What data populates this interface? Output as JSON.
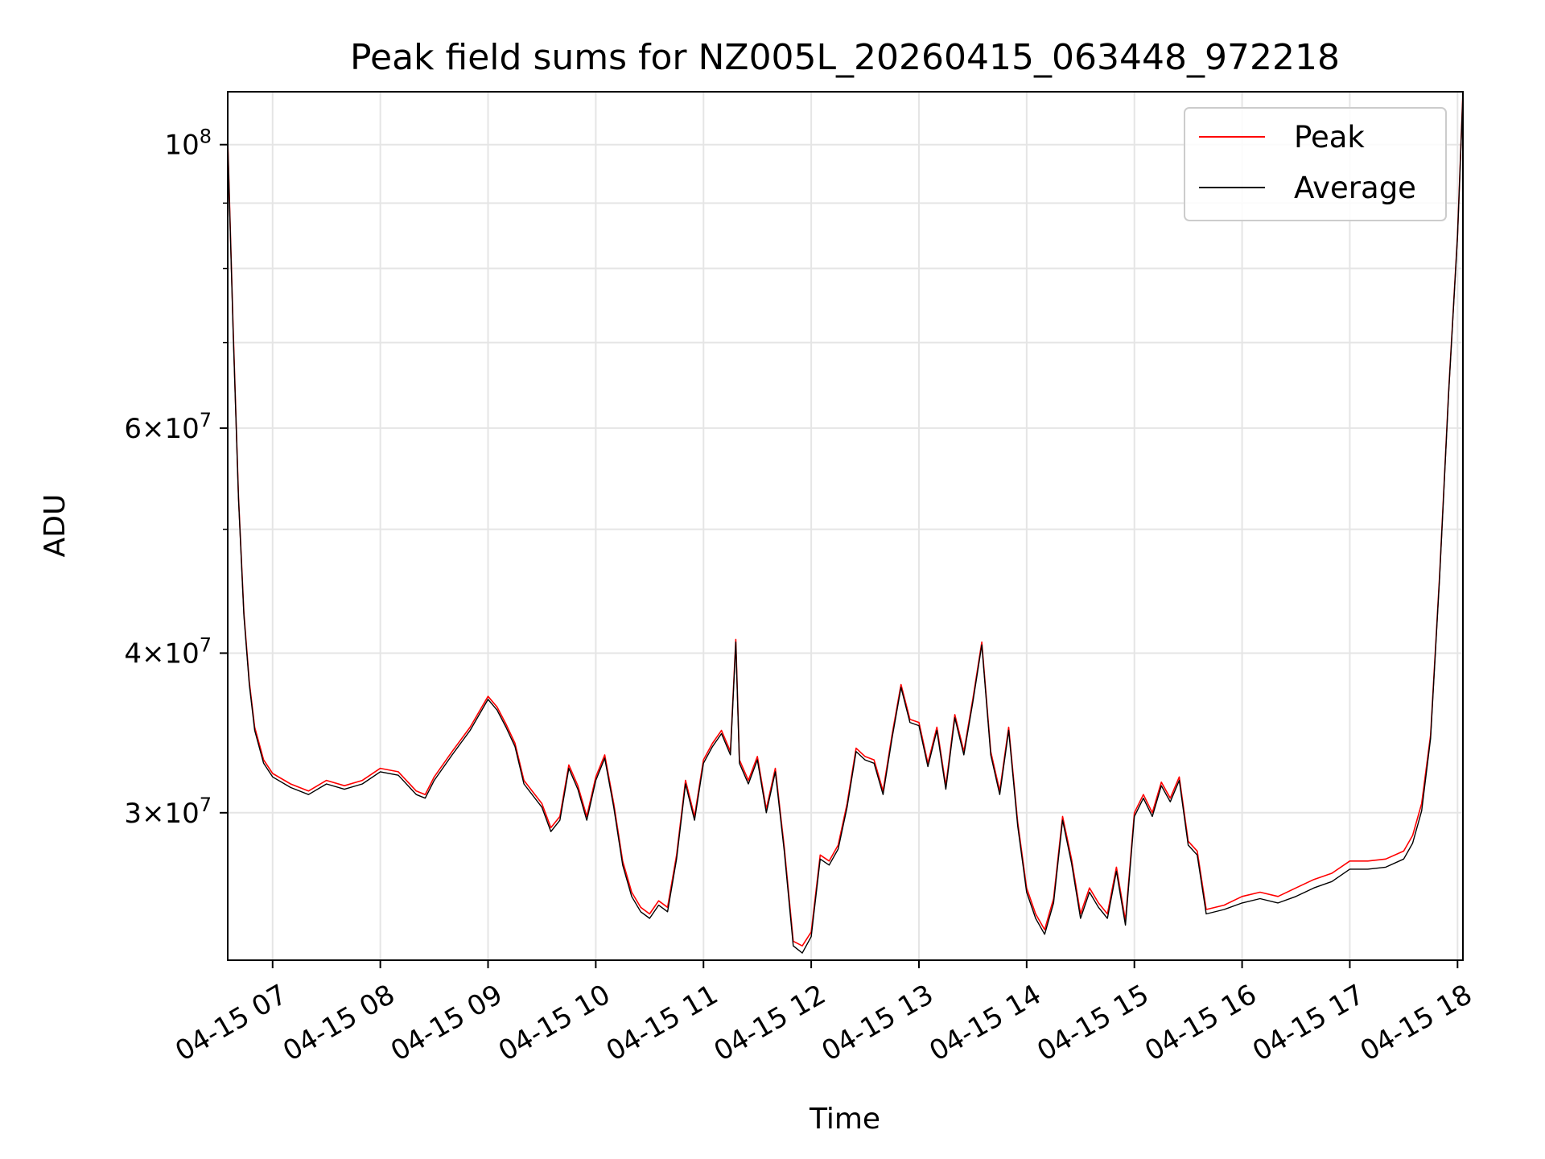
{
  "chart_data": {
    "type": "line",
    "title": "Peak field sums for NZ005L_20260415_063448_972218",
    "xlabel": "Time",
    "ylabel": "ADU",
    "y_scale": "log",
    "ylim": [
      23000000,
      110000000
    ],
    "xlim": [
      "2026-04-15 06:35",
      "2026-04-15 18:03"
    ],
    "grid": true,
    "legend_position": "top-right",
    "x_tick_labels": [
      {
        "t": "2026-04-15 07:00",
        "label": "04-15 07"
      },
      {
        "t": "2026-04-15 08:00",
        "label": "04-15 08"
      },
      {
        "t": "2026-04-15 09:00",
        "label": "04-15 09"
      },
      {
        "t": "2026-04-15 10:00",
        "label": "04-15 10"
      },
      {
        "t": "2026-04-15 11:00",
        "label": "04-15 11"
      },
      {
        "t": "2026-04-15 12:00",
        "label": "04-15 12"
      },
      {
        "t": "2026-04-15 13:00",
        "label": "04-15 13"
      },
      {
        "t": "2026-04-15 14:00",
        "label": "04-15 14"
      },
      {
        "t": "2026-04-15 15:00",
        "label": "04-15 15"
      },
      {
        "t": "2026-04-15 16:00",
        "label": "04-15 16"
      },
      {
        "t": "2026-04-15 17:00",
        "label": "04-15 17"
      },
      {
        "t": "2026-04-15 18:00",
        "label": "04-15 18"
      }
    ],
    "y_tick_labels": [
      {
        "v": 30000000,
        "base": "3",
        "exp": "7"
      },
      {
        "v": 40000000,
        "base": "4",
        "exp": "7"
      },
      {
        "v": 60000000,
        "base": "6",
        "exp": "7"
      },
      {
        "v": 100000000,
        "base": "10",
        "exp": "8"
      }
    ],
    "y_minor_ticks": [
      50000000,
      70000000,
      80000000,
      90000000
    ],
    "x": [
      "2026-04-15 06:35",
      "2026-04-15 06:38",
      "2026-04-15 06:41",
      "2026-04-15 06:44",
      "2026-04-15 06:47",
      "2026-04-15 06:50",
      "2026-04-15 06:55",
      "2026-04-15 07:00",
      "2026-04-15 07:10",
      "2026-04-15 07:20",
      "2026-04-15 07:30",
      "2026-04-15 07:40",
      "2026-04-15 07:50",
      "2026-04-15 08:00",
      "2026-04-15 08:10",
      "2026-04-15 08:20",
      "2026-04-15 08:25",
      "2026-04-15 08:30",
      "2026-04-15 08:40",
      "2026-04-15 08:50",
      "2026-04-15 09:00",
      "2026-04-15 09:05",
      "2026-04-15 09:10",
      "2026-04-15 09:15",
      "2026-04-15 09:20",
      "2026-04-15 09:30",
      "2026-04-15 09:35",
      "2026-04-15 09:40",
      "2026-04-15 09:45",
      "2026-04-15 09:50",
      "2026-04-15 09:55",
      "2026-04-15 10:00",
      "2026-04-15 10:05",
      "2026-04-15 10:10",
      "2026-04-15 10:15",
      "2026-04-15 10:20",
      "2026-04-15 10:25",
      "2026-04-15 10:30",
      "2026-04-15 10:35",
      "2026-04-15 10:40",
      "2026-04-15 10:45",
      "2026-04-15 10:50",
      "2026-04-15 10:55",
      "2026-04-15 11:00",
      "2026-04-15 11:05",
      "2026-04-15 11:10",
      "2026-04-15 11:15",
      "2026-04-15 11:18",
      "2026-04-15 11:20",
      "2026-04-15 11:25",
      "2026-04-15 11:30",
      "2026-04-15 11:35",
      "2026-04-15 11:40",
      "2026-04-15 11:45",
      "2026-04-15 11:50",
      "2026-04-15 11:55",
      "2026-04-15 12:00",
      "2026-04-15 12:05",
      "2026-04-15 12:10",
      "2026-04-15 12:15",
      "2026-04-15 12:20",
      "2026-04-15 12:25",
      "2026-04-15 12:30",
      "2026-04-15 12:35",
      "2026-04-15 12:40",
      "2026-04-15 12:45",
      "2026-04-15 12:50",
      "2026-04-15 12:55",
      "2026-04-15 13:00",
      "2026-04-15 13:05",
      "2026-04-15 13:10",
      "2026-04-15 13:15",
      "2026-04-15 13:20",
      "2026-04-15 13:25",
      "2026-04-15 13:30",
      "2026-04-15 13:35",
      "2026-04-15 13:40",
      "2026-04-15 13:45",
      "2026-04-15 13:50",
      "2026-04-15 13:55",
      "2026-04-15 14:00",
      "2026-04-15 14:05",
      "2026-04-15 14:10",
      "2026-04-15 14:15",
      "2026-04-15 14:20",
      "2026-04-15 14:25",
      "2026-04-15 14:30",
      "2026-04-15 14:35",
      "2026-04-15 14:40",
      "2026-04-15 14:45",
      "2026-04-15 14:50",
      "2026-04-15 14:55",
      "2026-04-15 15:00",
      "2026-04-15 15:05",
      "2026-04-15 15:10",
      "2026-04-15 15:15",
      "2026-04-15 15:20",
      "2026-04-15 15:25",
      "2026-04-15 15:30",
      "2026-04-15 15:35",
      "2026-04-15 15:40",
      "2026-04-15 15:50",
      "2026-04-15 16:00",
      "2026-04-15 16:10",
      "2026-04-15 16:20",
      "2026-04-15 16:30",
      "2026-04-15 16:40",
      "2026-04-15 16:50",
      "2026-04-15 17:00",
      "2026-04-15 17:10",
      "2026-04-15 17:20",
      "2026-04-15 17:30",
      "2026-04-15 17:35",
      "2026-04-15 17:40",
      "2026-04-15 17:45",
      "2026-04-15 17:50",
      "2026-04-15 17:55",
      "2026-04-15 18:00",
      "2026-04-15 18:03"
    ],
    "series": [
      {
        "name": "Peak",
        "color": "#ff0000",
        "values": [
          101000000,
          72000000,
          53000000,
          43000000,
          38000000,
          35000000,
          33000000,
          32200000,
          31600000,
          31200000,
          31800000,
          31500000,
          31800000,
          32500000,
          32300000,
          31200000,
          31000000,
          32000000,
          33500000,
          35000000,
          37000000,
          36300000,
          35200000,
          34000000,
          31800000,
          30500000,
          29200000,
          29800000,
          32700000,
          31500000,
          29800000,
          32000000,
          33300000,
          30500000,
          27500000,
          26000000,
          25300000,
          25000000,
          25600000,
          25300000,
          27800000,
          31800000,
          29800000,
          33000000,
          34000000,
          34800000,
          33500000,
          41000000,
          33000000,
          31800000,
          33200000,
          30200000,
          32500000,
          28200000,
          23800000,
          23600000,
          24200000,
          27800000,
          27500000,
          28300000,
          30500000,
          33700000,
          33200000,
          33000000,
          31200000,
          34500000,
          37800000,
          35500000,
          35300000,
          32800000,
          35000000,
          31500000,
          35800000,
          33500000,
          36800000,
          40800000,
          33500000,
          31200000,
          35000000,
          29500000,
          26200000,
          25000000,
          24300000,
          25700000,
          29800000,
          27600000,
          25000000,
          26200000,
          25500000,
          25000000,
          27200000,
          24700000,
          30000000,
          31000000,
          30000000,
          31700000,
          30800000,
          32000000,
          28500000,
          28000000,
          25200000,
          25400000,
          25800000,
          26000000,
          25800000,
          26200000,
          26600000,
          26900000,
          27500000,
          27500000,
          27600000,
          28000000,
          28800000,
          30500000,
          34500000,
          46000000,
          64000000,
          85000000,
          110000000
        ]
      },
      {
        "name": "Average",
        "color": "#000000",
        "values": [
          100500000,
          71500000,
          52800000,
          42800000,
          37800000,
          34800000,
          32800000,
          32000000,
          31400000,
          31000000,
          31600000,
          31300000,
          31600000,
          32300000,
          32100000,
          31000000,
          30800000,
          31800000,
          33300000,
          34800000,
          36800000,
          36100000,
          35000000,
          33800000,
          31600000,
          30300000,
          29000000,
          29600000,
          32500000,
          31300000,
          29600000,
          31800000,
          33100000,
          30300000,
          27300000,
          25800000,
          25100000,
          24800000,
          25400000,
          25100000,
          27600000,
          31600000,
          29600000,
          32800000,
          33800000,
          34600000,
          33300000,
          40800000,
          32800000,
          31600000,
          33000000,
          30000000,
          32300000,
          28000000,
          23600000,
          23300000,
          24000000,
          27600000,
          27300000,
          28100000,
          30300000,
          33500000,
          33000000,
          32800000,
          31000000,
          34300000,
          37600000,
          35300000,
          35100000,
          32600000,
          34800000,
          31300000,
          35600000,
          33300000,
          36600000,
          40600000,
          33300000,
          31000000,
          34800000,
          29300000,
          26000000,
          24800000,
          24100000,
          25500000,
          29600000,
          27400000,
          24800000,
          26000000,
          25300000,
          24800000,
          27000000,
          24500000,
          29800000,
          30800000,
          29800000,
          31500000,
          30600000,
          31800000,
          28300000,
          27800000,
          25000000,
          25200000,
          25500000,
          25700000,
          25500000,
          25800000,
          26200000,
          26500000,
          27100000,
          27100000,
          27200000,
          27600000,
          28400000,
          30100000,
          34300000,
          45800000,
          63800000,
          84800000,
          109500000
        ]
      }
    ]
  }
}
